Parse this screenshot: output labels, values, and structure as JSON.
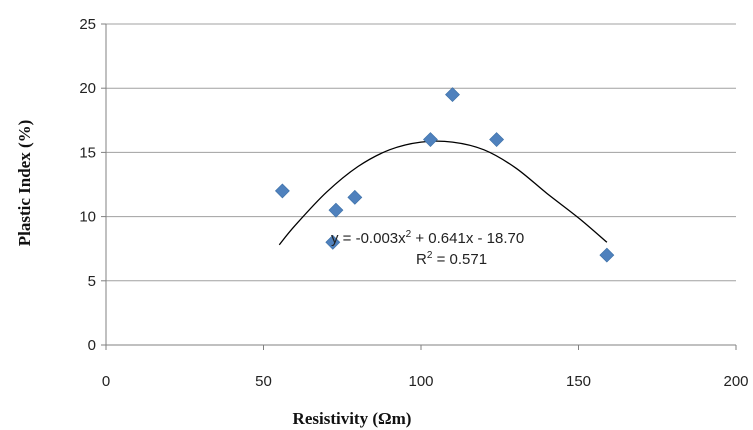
{
  "chart_data": {
    "type": "scatter",
    "title": "",
    "xlabel": "Resistivity (Ωm)",
    "ylabel": "Plastic Index (%)",
    "xlim": [
      0,
      200
    ],
    "ylim": [
      0,
      25
    ],
    "x_ticks": [
      0,
      50,
      100,
      150,
      200
    ],
    "y_ticks": [
      0,
      5,
      10,
      15,
      20,
      25
    ],
    "grid": "horizontal",
    "marker": "diamond",
    "color": "#4f81bd",
    "trendline_color": "#000000",
    "series": [
      {
        "points": [
          {
            "x": 56,
            "y": 12
          },
          {
            "x": 72,
            "y": 8
          },
          {
            "x": 73,
            "y": 10.5
          },
          {
            "x": 79,
            "y": 11.5
          },
          {
            "x": 103,
            "y": 16
          },
          {
            "x": 110,
            "y": 19.5
          },
          {
            "x": 124,
            "y": 16
          },
          {
            "x": 159,
            "y": 7
          }
        ]
      }
    ],
    "trendline": {
      "type": "polynomial",
      "order": 2,
      "x_range": [
        55,
        159
      ],
      "points": [
        {
          "x": 55,
          "y": 7.8
        },
        {
          "x": 60,
          "y": 9.3
        },
        {
          "x": 70,
          "y": 11.9
        },
        {
          "x": 80,
          "y": 13.9
        },
        {
          "x": 90,
          "y": 15.2
        },
        {
          "x": 100,
          "y": 15.8
        },
        {
          "x": 110,
          "y": 15.8
        },
        {
          "x": 120,
          "y": 15.2
        },
        {
          "x": 130,
          "y": 13.8
        },
        {
          "x": 140,
          "y": 11.8
        },
        {
          "x": 150,
          "y": 9.9
        },
        {
          "x": 159,
          "y": 8.0
        }
      ],
      "equation_prefix": "y = -0.003x",
      "equation_exp": "2",
      "equation_suffix": " + 0.641x - 18.70",
      "r2_prefix": "R",
      "r2_exp": "2",
      "r2_suffix": " = 0.571"
    }
  }
}
